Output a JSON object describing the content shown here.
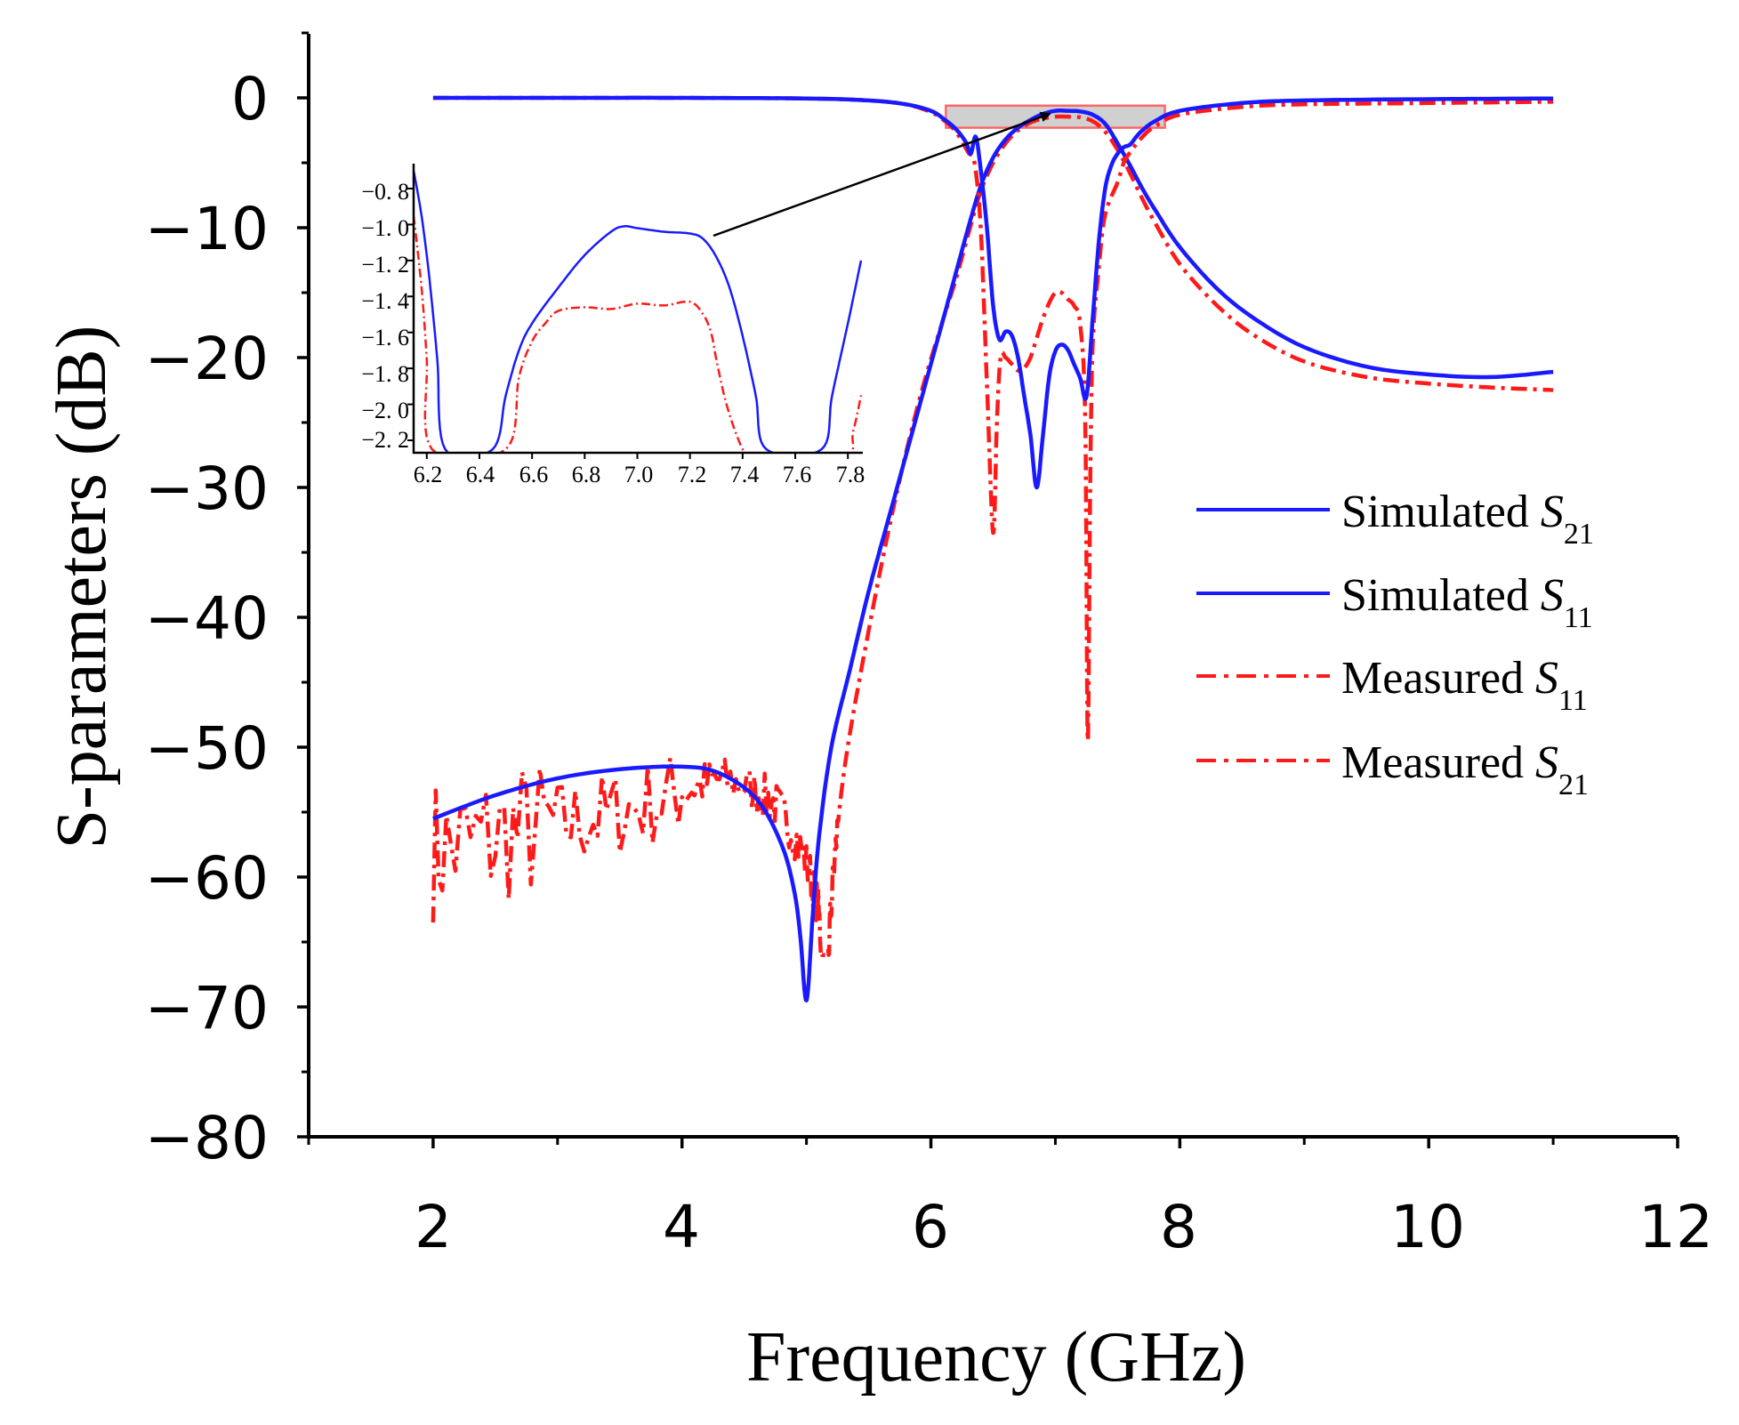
{
  "chart_data": {
    "type": "line",
    "title": "",
    "xlabel": "Frequency (GHz)",
    "ylabel": "S-parameters (dB)",
    "xlim": [
      1,
      12
    ],
    "ylim": [
      -80,
      5
    ],
    "xticks": [
      2,
      4,
      6,
      8,
      10,
      12
    ],
    "xtick_labels": [
      "2",
      "4",
      "6",
      "8",
      "10",
      "12"
    ],
    "yticks": [
      0,
      -10,
      -20,
      -30,
      -40,
      -50,
      -60,
      -70,
      -80
    ],
    "ytick_labels": [
      "0",
      "−10",
      "−20",
      "−30",
      "−40",
      "−50",
      "−60",
      "−70",
      "−80"
    ],
    "legend_position": "right",
    "series": [
      {
        "name": "Simulated S21",
        "legend_main": "Simulated ",
        "legend_sym": "S",
        "legend_sub": "21",
        "color": "#1a1aff",
        "style": "solid",
        "x": [
          2,
          2.5,
          3,
          3.5,
          4,
          4.3,
          4.6,
          4.8,
          4.9,
          4.95,
          5.0,
          5.05,
          5.1,
          5.2,
          5.35,
          5.5,
          5.7,
          5.9,
          6.1,
          6.2,
          6.3,
          6.4,
          6.5,
          6.6,
          6.7,
          6.8,
          6.9,
          7.0,
          7.1,
          7.2,
          7.3,
          7.4,
          7.5,
          7.6,
          7.7,
          7.8,
          8.0,
          8.3,
          8.6,
          9.0,
          9.5,
          10.0,
          10.5,
          11.0
        ],
        "y": [
          -55.5,
          -53.7,
          -52.4,
          -51.7,
          -51.5,
          -52.0,
          -54.0,
          -57.5,
          -61.0,
          -64.5,
          -69.5,
          -63.0,
          -57.0,
          -50.0,
          -44.0,
          -38.0,
          -31.0,
          -24.0,
          -17.0,
          -13.5,
          -10.0,
          -6.8,
          -4.6,
          -3.2,
          -2.3,
          -1.7,
          -1.25,
          -1.0,
          -1.0,
          -1.05,
          -1.3,
          -2.0,
          -3.5,
          -5.2,
          -7.0,
          -8.6,
          -11.5,
          -14.7,
          -17.0,
          -19.2,
          -20.7,
          -21.3,
          -21.5,
          -21.1
        ]
      },
      {
        "name": "Simulated S11",
        "legend_main": "Simulated ",
        "legend_sym": "S",
        "legend_sub": "11",
        "color": "#1a1aff",
        "style": "solid",
        "x": [
          2,
          3,
          4,
          5,
          5.5,
          5.8,
          6.0,
          6.1,
          6.2,
          6.28,
          6.32,
          6.36,
          6.4,
          6.45,
          6.5,
          6.55,
          6.6,
          6.65,
          6.7,
          6.75,
          6.8,
          6.85,
          6.9,
          6.95,
          7.0,
          7.05,
          7.1,
          7.15,
          7.2,
          7.25,
          7.3,
          7.35,
          7.4,
          7.45,
          7.5,
          7.55,
          7.6,
          7.65,
          7.7,
          7.8,
          8.0,
          8.5,
          9.0,
          10.0,
          11.0
        ],
        "y": [
          0,
          0,
          0,
          -0.05,
          -0.2,
          -0.5,
          -1.0,
          -1.6,
          -2.4,
          -3.4,
          -4.3,
          -3.0,
          -5.5,
          -10.0,
          -16.0,
          -18.6,
          -18.0,
          -18.3,
          -20.0,
          -23.0,
          -26.0,
          -30.0,
          -26.0,
          -21.5,
          -19.5,
          -19.0,
          -19.4,
          -20.5,
          -21.6,
          -23.0,
          -17.0,
          -11.0,
          -7.0,
          -5.2,
          -4.3,
          -3.8,
          -3.6,
          -3.0,
          -2.5,
          -1.8,
          -1.0,
          -0.4,
          -0.2,
          -0.1,
          -0.05
        ]
      },
      {
        "name": "Measured S11",
        "legend_main": "Measured ",
        "legend_sym": "S",
        "legend_sub": "11",
        "color": "#ff1a1a",
        "style": "dashdot",
        "x": [
          2,
          3,
          4,
          5,
          5.5,
          5.8,
          6.0,
          6.1,
          6.2,
          6.3,
          6.35,
          6.4,
          6.45,
          6.5,
          6.53,
          6.56,
          6.6,
          6.65,
          6.7,
          6.75,
          6.8,
          6.85,
          6.9,
          6.95,
          7.0,
          7.05,
          7.1,
          7.15,
          7.2,
          7.24,
          7.26,
          7.28,
          7.3,
          7.35,
          7.4,
          7.5,
          7.55,
          7.6,
          7.7,
          7.8,
          8.0,
          8.5,
          9.0,
          10.0,
          11.0
        ],
        "y": [
          0,
          0,
          0,
          -0.05,
          -0.2,
          -0.5,
          -1.1,
          -1.7,
          -2.6,
          -4.2,
          -5.0,
          -10.0,
          -22.0,
          -33.5,
          -25.0,
          -20.0,
          -20.0,
          -20.5,
          -21.0,
          -20.8,
          -20.0,
          -18.5,
          -17.0,
          -15.8,
          -15.0,
          -15.0,
          -15.5,
          -16.0,
          -17.5,
          -25.0,
          -49.5,
          -30.0,
          -19.0,
          -13.0,
          -9.0,
          -6.5,
          -5.0,
          -4.2,
          -3.0,
          -2.2,
          -1.3,
          -0.7,
          -0.5,
          -0.4,
          -0.3
        ]
      },
      {
        "name": "Measured S21",
        "legend_main": "Measured ",
        "legend_sym": "S",
        "legend_sub": "21",
        "color": "#ff1a1a",
        "style": "dashdot",
        "x": [
          2,
          2.5,
          3,
          3.5,
          4,
          4.3,
          4.6,
          4.8,
          5.0,
          5.1,
          5.15,
          5.2,
          5.3,
          5.5,
          5.7,
          5.9,
          6.1,
          6.2,
          6.3,
          6.4,
          6.5,
          6.6,
          6.7,
          6.8,
          6.9,
          7.0,
          7.1,
          7.2,
          7.3,
          7.4,
          7.5,
          7.6,
          7.7,
          7.8,
          8.0,
          8.3,
          8.6,
          9.0,
          9.5,
          10.0,
          10.5,
          11.0
        ],
        "y": [
          -58.0,
          -57.0,
          -56.0,
          -55.0,
          -53.5,
          -52.5,
          -53.5,
          -55.0,
          -59.0,
          -63.0,
          -70.5,
          -62.0,
          -52.0,
          -41.0,
          -31.5,
          -23.5,
          -17.0,
          -14.0,
          -10.5,
          -7.2,
          -5.0,
          -3.5,
          -2.5,
          -1.9,
          -1.6,
          -1.45,
          -1.45,
          -1.5,
          -1.8,
          -2.6,
          -4.0,
          -5.8,
          -7.8,
          -9.6,
          -12.8,
          -16.0,
          -18.3,
          -20.3,
          -21.5,
          -22.0,
          -22.3,
          -22.5
        ]
      }
    ],
    "inset": {
      "xlim": [
        6.15,
        7.85
      ],
      "ylim": [
        -2.2,
        -0.7
      ],
      "xticks": [
        6.2,
        6.4,
        6.6,
        6.8,
        7.0,
        7.2,
        7.4,
        7.6,
        7.8
      ],
      "xtick_labels": [
        "6.2",
        "6.4",
        "6.6",
        "6.8",
        "7.0",
        "7.2",
        "7.4",
        "7.6",
        "7.8"
      ],
      "yticks": [
        -0.8,
        -1.0,
        -1.2,
        -1.4,
        -1.6,
        -1.8,
        -2.0,
        -2.2
      ],
      "ytick_labels": [
        "−0. 8",
        "−1. 0",
        "−1. 2",
        "−1. 4",
        "−1. 6",
        "−1. 8",
        "−2. 0",
        "−2. 2"
      ],
      "highlight_range": {
        "x": [
          6.12,
          7.88
        ],
        "y": [
          -0.6,
          -2.3
        ]
      },
      "series": [
        {
          "name": "Simulated S21 (zoom)",
          "color": "#1a1aff",
          "style": "solid",
          "x": [
            6.15,
            6.18,
            6.21,
            6.24,
            6.27,
            6.45,
            6.5,
            6.55,
            6.6,
            6.7,
            6.8,
            6.9,
            6.95,
            7.0,
            7.1,
            7.2,
            7.25,
            7.3,
            7.35,
            7.4,
            7.45,
            7.49,
            7.7,
            7.74,
            7.8,
            7.85
          ],
          "y": [
            -0.7,
            -0.95,
            -1.3,
            -1.75,
            -2.25,
            -2.25,
            -1.95,
            -1.7,
            -1.55,
            -1.35,
            -1.17,
            -1.04,
            -1.01,
            -1.02,
            -1.04,
            -1.05,
            -1.08,
            -1.18,
            -1.35,
            -1.62,
            -1.95,
            -2.25,
            -2.25,
            -1.95,
            -1.55,
            -1.2
          ]
        },
        {
          "name": "Measured S21 (zoom)",
          "color": "#ff1a1a",
          "style": "dashdot",
          "x": [
            6.15,
            6.18,
            6.2,
            6.22,
            6.5,
            6.55,
            6.6,
            6.65,
            6.7,
            6.8,
            6.9,
            7.0,
            7.1,
            7.2,
            7.25,
            7.28,
            7.3,
            7.33,
            7.36,
            7.4,
            7.43,
            7.78,
            7.82,
            7.85
          ],
          "y": [
            -0.95,
            -1.35,
            -1.75,
            -2.25,
            -2.25,
            -1.85,
            -1.65,
            -1.55,
            -1.48,
            -1.46,
            -1.47,
            -1.44,
            -1.45,
            -1.43,
            -1.5,
            -1.6,
            -1.75,
            -1.95,
            -2.1,
            -2.25,
            -2.3,
            -2.3,
            -2.15,
            -1.95
          ]
        }
      ]
    }
  }
}
